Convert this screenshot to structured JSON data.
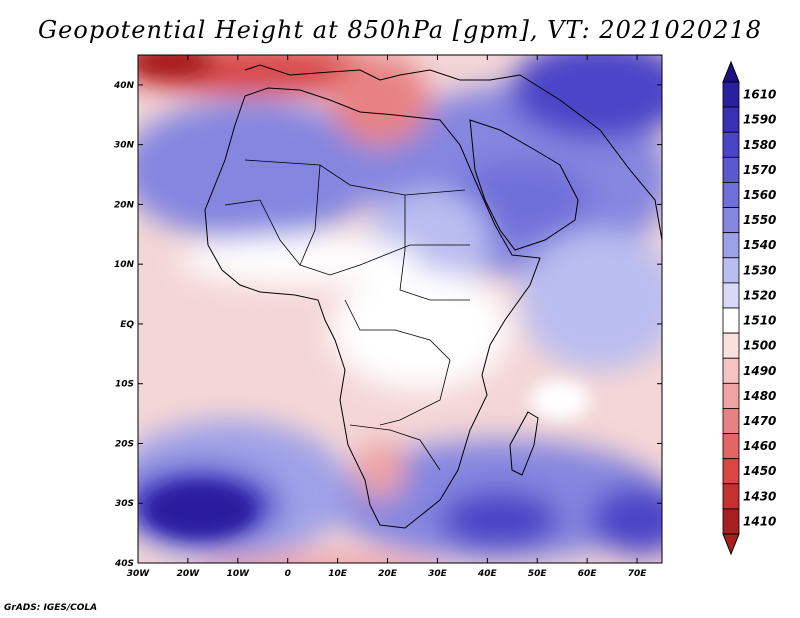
{
  "title": "Geopotential Height at 850hPa [gpm], VT: 2021020218",
  "credit": "GrADS: IGES/COLA",
  "map": {
    "lon_range": [
      -30,
      75
    ],
    "lat_range": [
      -40,
      45
    ],
    "lat_ticks": [
      {
        "value": 40,
        "label": "40N"
      },
      {
        "value": 30,
        "label": "30N"
      },
      {
        "value": 20,
        "label": "20N"
      },
      {
        "value": 10,
        "label": "10N"
      },
      {
        "value": 0,
        "label": "EQ"
      },
      {
        "value": -10,
        "label": "10S"
      },
      {
        "value": -20,
        "label": "20S"
      },
      {
        "value": -30,
        "label": "30S"
      },
      {
        "value": -40,
        "label": "40S"
      }
    ],
    "lon_ticks": [
      {
        "value": -30,
        "label": "30W"
      },
      {
        "value": -20,
        "label": "20W"
      },
      {
        "value": -10,
        "label": "10W"
      },
      {
        "value": 0,
        "label": "0"
      },
      {
        "value": 10,
        "label": "10E"
      },
      {
        "value": 20,
        "label": "20E"
      },
      {
        "value": 30,
        "label": "30E"
      },
      {
        "value": 40,
        "label": "40E"
      },
      {
        "value": 50,
        "label": "50E"
      },
      {
        "value": 60,
        "label": "60E"
      },
      {
        "value": 70,
        "label": "70E"
      }
    ]
  },
  "colorbar": {
    "levels": [
      {
        "label": "1610",
        "color": "#2a1f9e"
      },
      {
        "label": "1590",
        "color": "#3a30b8"
      },
      {
        "label": "1580",
        "color": "#4b44c8"
      },
      {
        "label": "1570",
        "color": "#5c58d0"
      },
      {
        "label": "1560",
        "color": "#6f6fd9"
      },
      {
        "label": "1550",
        "color": "#8586e0"
      },
      {
        "label": "1540",
        "color": "#9fa1e8"
      },
      {
        "label": "1530",
        "color": "#babdf0"
      },
      {
        "label": "1520",
        "color": "#d7d9f7"
      },
      {
        "label": "1510",
        "color": "#ffffff"
      },
      {
        "label": "1500",
        "color": "#fbe0e0"
      },
      {
        "label": "1490",
        "color": "#f6c3c3"
      },
      {
        "label": "1480",
        "color": "#efa3a3"
      },
      {
        "label": "1470",
        "color": "#e88282"
      },
      {
        "label": "1460",
        "color": "#e26666"
      },
      {
        "label": "1450",
        "color": "#d94646"
      },
      {
        "label": "1430",
        "color": "#c53030"
      },
      {
        "label": "1410",
        "color": "#a81f1f"
      }
    ],
    "top_color": "#1b1180",
    "bottom_color": "#a81f1f"
  },
  "colors": {
    "land_outline": "#000000",
    "frame": "#000000"
  }
}
